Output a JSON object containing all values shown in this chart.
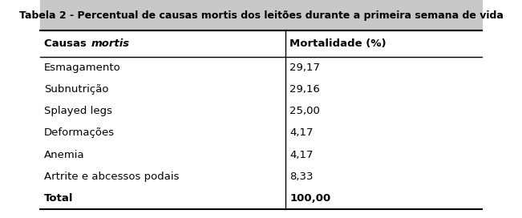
{
  "title": "Tabela 2 - Percentual de causas mortis dos leitões durante a primeira semana de vida",
  "col1_header": "Causas ",
  "col1_header_italic": "mortis",
  "col2_header": "Mortalidade (%)",
  "rows": [
    [
      "Esmagamento",
      "29,17"
    ],
    [
      "Subnutrição",
      "29,16"
    ],
    [
      "Splayed legs",
      "25,00"
    ],
    [
      "Deformações",
      "4,17"
    ],
    [
      "Anemia",
      "4,17"
    ],
    [
      "Artrite e abcessos podais",
      "8,33"
    ],
    [
      "Total",
      "100,00"
    ]
  ],
  "col_split": 0.555,
  "bg_color": "#ffffff",
  "text_color": "#000000",
  "title_fontsize": 9.0,
  "header_fontsize": 9.5,
  "row_fontsize": 9.5,
  "title_bg": "#c8c8c8",
  "bold_rows": [
    6
  ]
}
